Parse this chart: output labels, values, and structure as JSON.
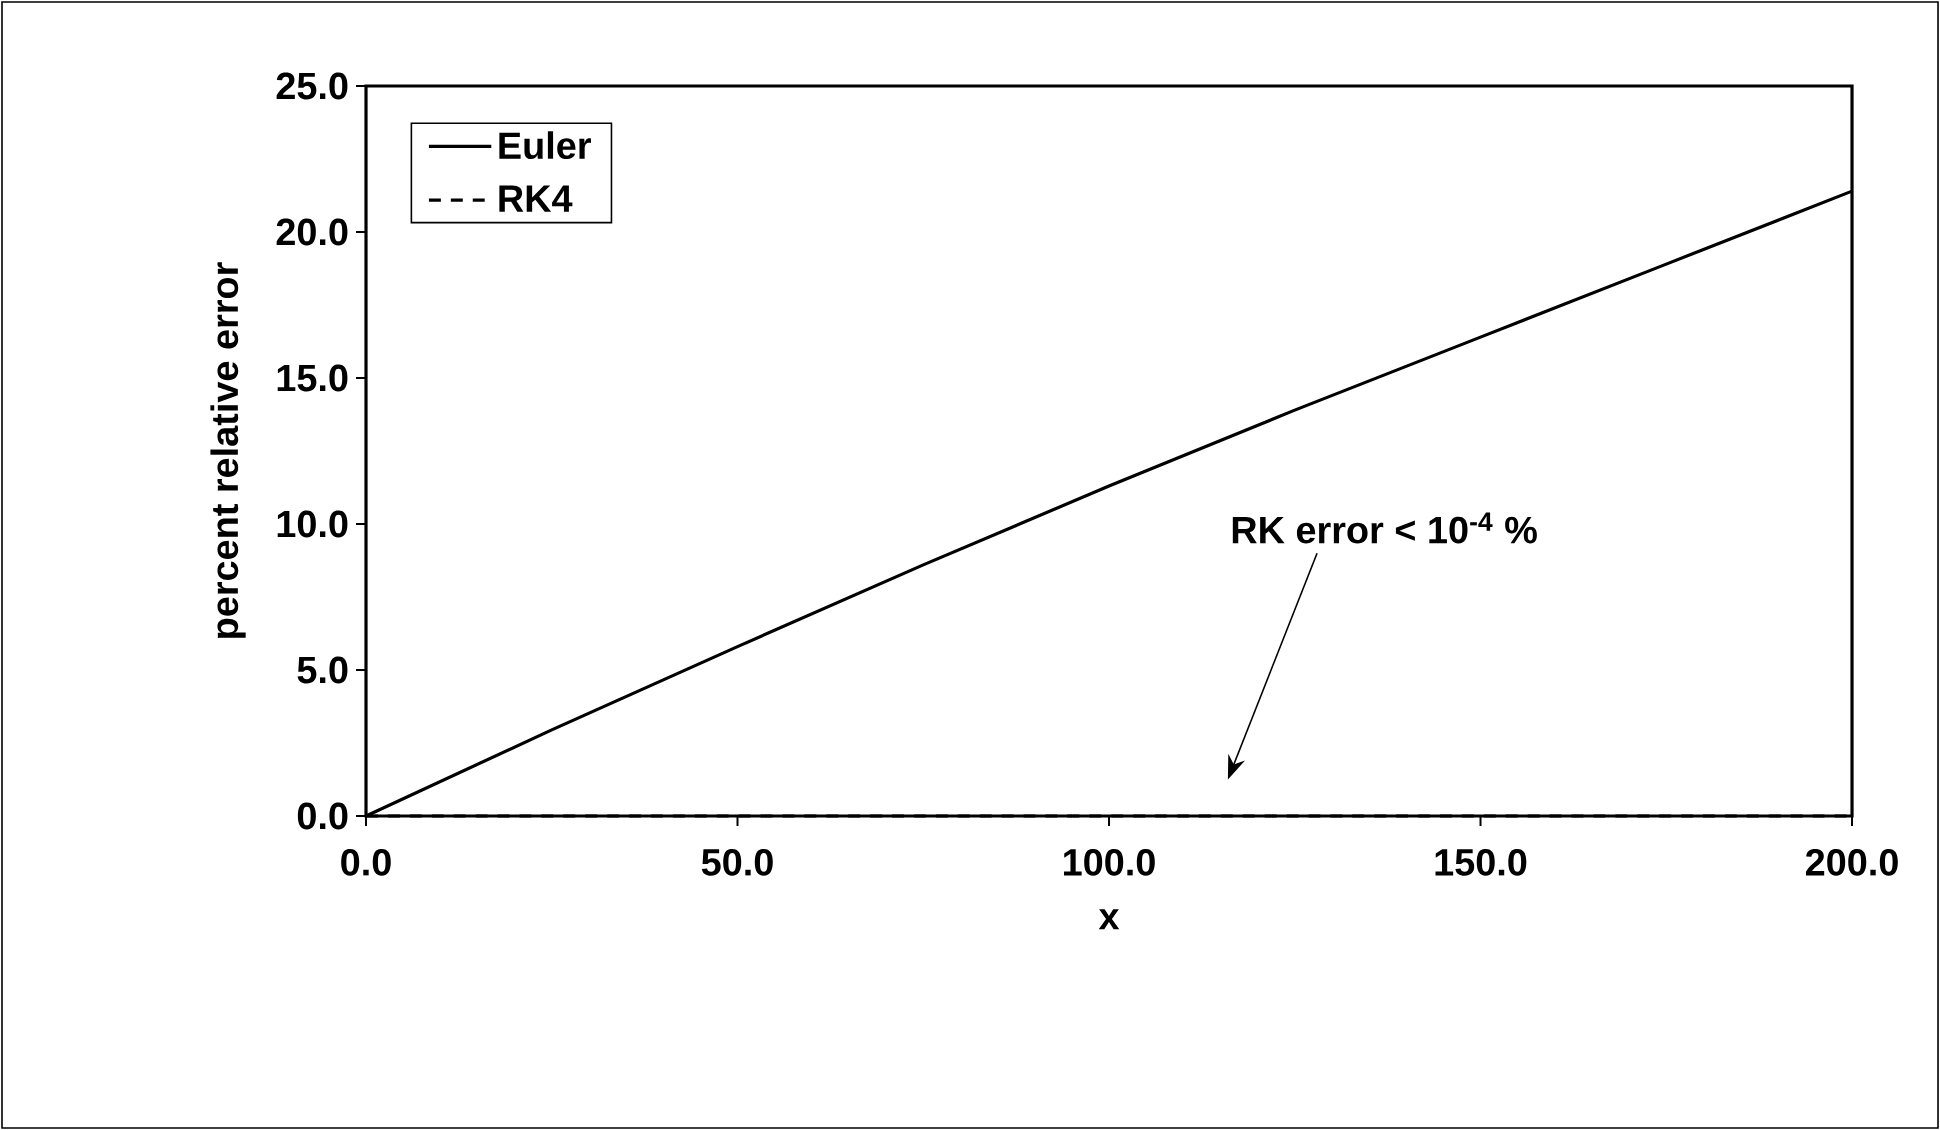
{
  "chart_data": {
    "type": "line",
    "xlabel": "x",
    "ylabel": "percent relative error",
    "x": [
      0,
      25,
      50,
      75,
      100,
      125,
      150,
      175,
      200
    ],
    "series": [
      {
        "name": "Euler",
        "color": "#000000",
        "line_style": "solid",
        "values": [
          0,
          2.95,
          5.8,
          8.6,
          11.3,
          13.9,
          16.4,
          18.9,
          21.4
        ]
      },
      {
        "name": "RK4",
        "color": "#000000",
        "line_style": "dashed",
        "values": [
          0,
          0,
          0,
          0,
          0,
          0,
          0,
          0,
          0
        ]
      }
    ],
    "xlim": [
      0,
      200
    ],
    "ylim": [
      0,
      25
    ],
    "xticks": [
      {
        "value": 0,
        "label": "0.0"
      },
      {
        "value": 50,
        "label": "50.0"
      },
      {
        "value": 100,
        "label": "100.0"
      },
      {
        "value": 150,
        "label": "150.0"
      },
      {
        "value": 200,
        "label": "200.0"
      }
    ],
    "yticks": [
      {
        "value": 0,
        "label": "0.0"
      },
      {
        "value": 5,
        "label": "5.0"
      },
      {
        "value": 10,
        "label": "10.0"
      },
      {
        "value": 15,
        "label": "15.0"
      },
      {
        "value": 20,
        "label": "20.0"
      },
      {
        "value": 25,
        "label": "25.0"
      }
    ],
    "annotations": [
      "RK error < 10$^{-4}$ %"
    ],
    "grid": false,
    "legend": "top left",
    "marker": "none"
  }
}
